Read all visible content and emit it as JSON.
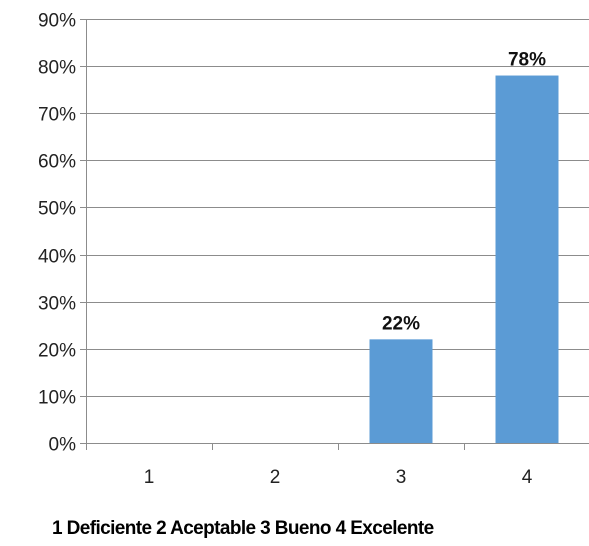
{
  "chart_data": {
    "type": "bar",
    "categories": [
      "1",
      "2",
      "3",
      "4"
    ],
    "values": [
      0,
      0,
      22,
      78
    ],
    "data_labels": [
      "",
      "",
      "22%",
      "78%"
    ],
    "y_ticks": [
      "0%",
      "10%",
      "20%",
      "30%",
      "40%",
      "50%",
      "60%",
      "70%",
      "80%",
      "90%"
    ],
    "ylim": [
      0,
      90
    ],
    "grid": true,
    "legend": "none",
    "bar_color": "#5B9BD5",
    "caption": "1 Deficiente 2 Aceptable 3 Bueno 4 Excelente"
  }
}
